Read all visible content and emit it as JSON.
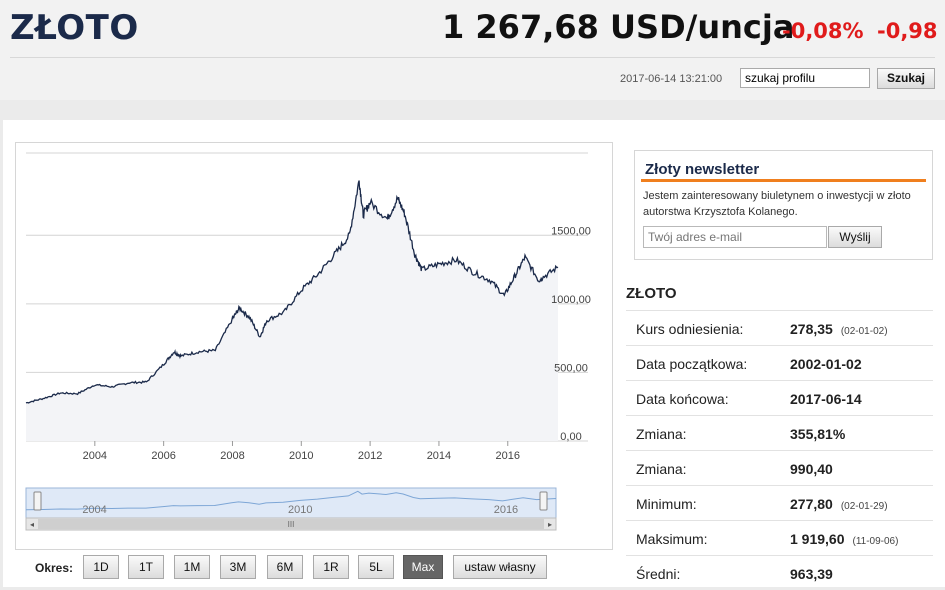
{
  "header": {
    "title": "ZŁOTO",
    "price": "1 267,68 USD/uncja",
    "change_pct": "-0,08%",
    "change_abs": "-0,98",
    "timestamp": "2017-06-14 13:21:00",
    "search_placeholder": "szukaj profilu",
    "search_button": "Szukaj"
  },
  "colors": {
    "accent": "#e01b1b",
    "brand": "#1b2a4a",
    "newsletter_bar": "#f07f1e",
    "line": "#1b2a4a"
  },
  "chart_data": {
    "type": "line",
    "ylim": [
      0,
      2100
    ],
    "y_ticks": [
      "1500,00",
      "1000,00",
      "500,00",
      "0,00"
    ],
    "y_tick_values": [
      1500,
      1000,
      500,
      0
    ],
    "x_ticks": [
      "2004",
      "2006",
      "2008",
      "2010",
      "2012",
      "2014",
      "2016"
    ],
    "x_tick_values": [
      2004,
      2006,
      2008,
      2010,
      2012,
      2014,
      2016
    ],
    "xlim": [
      2002.0,
      2017.46
    ],
    "x": [
      2002.0,
      2002.5,
      2003.0,
      2003.5,
      2004.0,
      2004.5,
      2005.0,
      2005.5,
      2006.0,
      2006.3,
      2006.5,
      2007.0,
      2007.5,
      2008.0,
      2008.2,
      2008.5,
      2008.8,
      2009.0,
      2009.5,
      2010.0,
      2010.5,
      2011.0,
      2011.4,
      2011.68,
      2011.8,
      2012.0,
      2012.5,
      2012.8,
      2013.0,
      2013.3,
      2013.5,
      2014.0,
      2014.5,
      2015.0,
      2015.5,
      2015.9,
      2016.2,
      2016.5,
      2016.9,
      2017.0,
      2017.46
    ],
    "series": [
      {
        "values": [
          278,
          310,
          350,
          345,
          410,
          395,
          425,
          430,
          560,
          650,
          620,
          650,
          660,
          890,
          970,
          900,
          760,
          880,
          940,
          1100,
          1220,
          1370,
          1500,
          1900,
          1650,
          1740,
          1620,
          1770,
          1660,
          1360,
          1250,
          1290,
          1320,
          1230,
          1170,
          1060,
          1200,
          1340,
          1170,
          1190,
          1268
        ]
      }
    ],
    "navigator_ticks": [
      "2004",
      "2010",
      "2016"
    ]
  },
  "navigator": {
    "scroll_grip": "III"
  },
  "period": {
    "label": "Okres:",
    "buttons": [
      "1D",
      "1T",
      "1M",
      "3M",
      "6M",
      "1R",
      "5L",
      "Max",
      "ustaw własny"
    ],
    "active": "Max"
  },
  "newsletter": {
    "title": "Złoty newsletter",
    "text": "Jestem zainteresowany biuletynem o inwestycji w złoto autorstwa Krzysztofa Kolanego.",
    "placeholder": "Twój adres e-mail",
    "button": "Wyślij"
  },
  "stats": {
    "title": "ZŁOTO",
    "rows": [
      {
        "label": "Kurs odniesienia:",
        "value": "278,35",
        "note": "(02-01-02)"
      },
      {
        "label": "Data początkowa:",
        "value": "2002-01-02",
        "note": ""
      },
      {
        "label": "Data końcowa:",
        "value": "2017-06-14",
        "note": ""
      },
      {
        "label": "Zmiana:",
        "value": "355,81%",
        "note": ""
      },
      {
        "label": "Zmiana:",
        "value": "990,40",
        "note": ""
      },
      {
        "label": "Minimum:",
        "value": "277,80",
        "note": "(02-01-29)"
      },
      {
        "label": "Maksimum:",
        "value": "1 919,60",
        "note": "(11-09-06)"
      },
      {
        "label": "Średni:",
        "value": "963,39",
        "note": ""
      }
    ]
  }
}
